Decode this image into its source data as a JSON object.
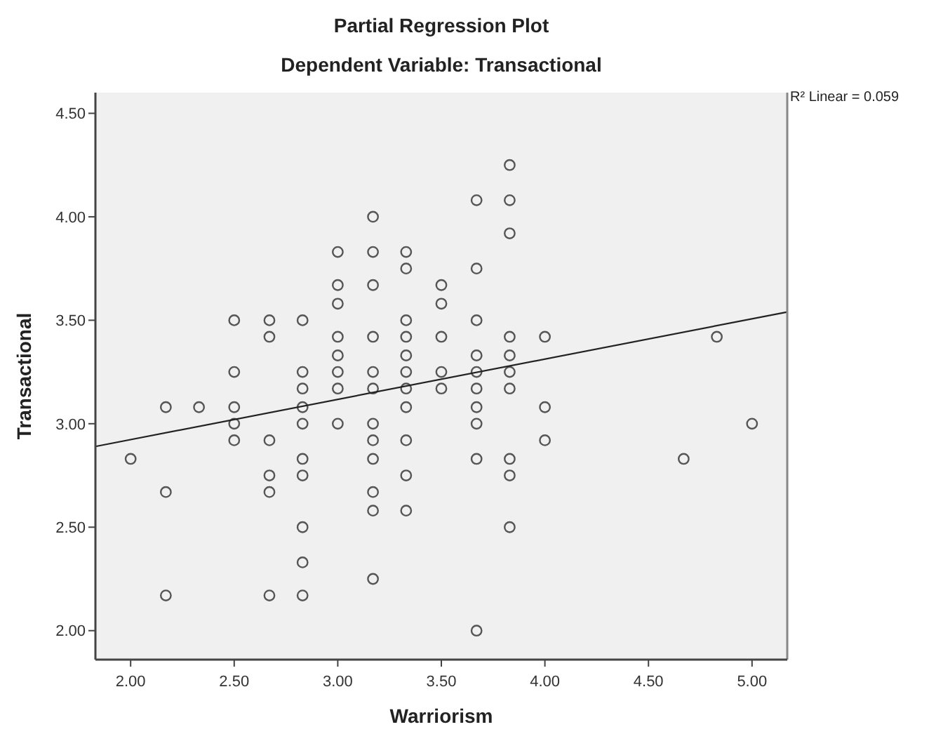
{
  "chart_data": {
    "type": "scatter",
    "title": "Partial Regression Plot",
    "subtitle": "Dependent Variable: Transactional",
    "xlabel": "Warriorism",
    "ylabel": "Transactional",
    "annotations": [
      "R² Linear = 0.059"
    ],
    "marker": "circle",
    "xlim": [
      1.83,
      5.17
    ],
    "ylim": [
      1.86,
      4.6
    ],
    "xticks": [
      {
        "value": 2,
        "label": "2.00"
      },
      {
        "value": 2.5,
        "label": "2.50"
      },
      {
        "value": 3,
        "label": "3.00"
      },
      {
        "value": 3.5,
        "label": "3.50"
      },
      {
        "value": 4,
        "label": "4.00"
      },
      {
        "value": 4.5,
        "label": "4.50"
      },
      {
        "value": 5,
        "label": "5.00"
      }
    ],
    "yticks": [
      {
        "value": 2,
        "label": "2.00"
      },
      {
        "value": 2.5,
        "label": "2.50"
      },
      {
        "value": 3,
        "label": "3.00"
      },
      {
        "value": 3.5,
        "label": "3.50"
      },
      {
        "value": 4,
        "label": "4.00"
      },
      {
        "value": 4.5,
        "label": "4.50"
      }
    ],
    "series": [
      {
        "color": "#555555",
        "x": [
          2,
          2.17,
          2.17,
          2.17,
          2.33,
          2.5,
          2.5,
          2.5,
          2.5,
          2.5,
          2.67,
          2.67,
          2.67,
          2.67,
          2.67,
          2.67,
          2.83,
          2.83,
          2.83,
          2.83,
          2.83,
          2.83,
          2.83,
          2.83,
          2.83,
          2.83,
          3,
          3,
          3,
          3,
          3,
          3,
          3,
          3,
          3.17,
          3.17,
          3.17,
          3.17,
          3.17,
          3.17,
          3.17,
          3.17,
          3.17,
          3.17,
          3.17,
          3.17,
          3.33,
          3.33,
          3.33,
          3.33,
          3.33,
          3.33,
          3.33,
          3.33,
          3.33,
          3.33,
          3.33,
          3.5,
          3.5,
          3.5,
          3.5,
          3.5,
          3.67,
          3.67,
          3.67,
          3.67,
          3.67,
          3.67,
          3.67,
          3.67,
          3.67,
          3.67,
          3.83,
          3.83,
          3.83,
          3.83,
          3.83,
          3.83,
          3.83,
          3.83,
          3.83,
          3.83,
          4,
          4,
          4,
          4.67,
          4.83,
          5
        ],
        "values": [
          2.83,
          3.08,
          2.67,
          2.17,
          3.08,
          3.5,
          3.25,
          3.08,
          3,
          2.92,
          3.5,
          3.42,
          2.92,
          2.75,
          2.67,
          2.17,
          3.5,
          3.25,
          3.17,
          3.08,
          3,
          2.83,
          2.75,
          2.5,
          2.33,
          2.17,
          3.83,
          3.67,
          3.58,
          3.42,
          3.33,
          3.25,
          3.17,
          3,
          4,
          3.83,
          3.67,
          3.42,
          3.25,
          3.17,
          3,
          2.92,
          2.83,
          2.67,
          2.58,
          2.25,
          3.83,
          3.75,
          3.5,
          3.42,
          3.33,
          3.25,
          3.17,
          3.08,
          2.92,
          2.75,
          2.58,
          3.67,
          3.58,
          3.42,
          3.25,
          3.17,
          4.08,
          3.75,
          3.5,
          3.33,
          3.25,
          3.17,
          3.08,
          3,
          2.83,
          2,
          4.25,
          4.08,
          3.92,
          3.42,
          3.33,
          3.25,
          3.17,
          2.83,
          2.75,
          2.5,
          3.42,
          3.08,
          2.92,
          2.83,
          3.42,
          3
        ]
      },
      {
        "type": "line",
        "color": "#222222",
        "marker": "none",
        "line_style": "solid",
        "x": [
          1.83,
          5.17
        ],
        "values": [
          2.89,
          3.54
        ]
      }
    ]
  }
}
